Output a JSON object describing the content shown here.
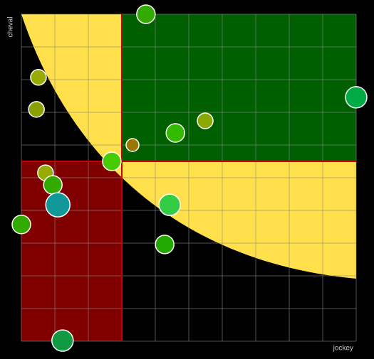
{
  "chart_data": {
    "type": "bubble",
    "x_label": "jockey",
    "y_label": "cheval",
    "xlim": [
      0,
      10
    ],
    "ylim": [
      0,
      10
    ],
    "xticks": [
      0,
      1,
      2,
      3,
      4,
      5,
      6,
      7,
      8,
      9,
      10
    ],
    "yticks": [
      0,
      1,
      2,
      3,
      4,
      5,
      6,
      7,
      8,
      9,
      10
    ],
    "grid": true,
    "x_threshold": 3,
    "y_threshold": 5.5,
    "series": [
      {
        "x": [
          3.72,
          0.51,
          0.45,
          10.0,
          5.49,
          4.6,
          3.32,
          2.7,
          0.72,
          0.94,
          1.09,
          4.43,
          0.0,
          4.28,
          1.23
        ],
        "values": [
          10.0,
          8.07,
          7.09,
          7.46,
          6.74,
          6.37,
          6.0,
          5.5,
          5.15,
          4.78,
          4.17,
          4.17,
          3.57,
          2.96,
          0.02
        ],
        "size": [
          13,
          11,
          11,
          15,
          11,
          13,
          9,
          13,
          11,
          13,
          17,
          15,
          13,
          13,
          15
        ],
        "colors": [
          "#33aa00",
          "#99aa00",
          "#88a000",
          "#00aa44",
          "#88aa00",
          "#33bb00",
          "#997700",
          "#44cc00",
          "#99aa00",
          "#33aa00",
          "#119999",
          "#33cc44",
          "#33aa00",
          "#22aa00",
          "#119944"
        ]
      }
    ]
  }
}
